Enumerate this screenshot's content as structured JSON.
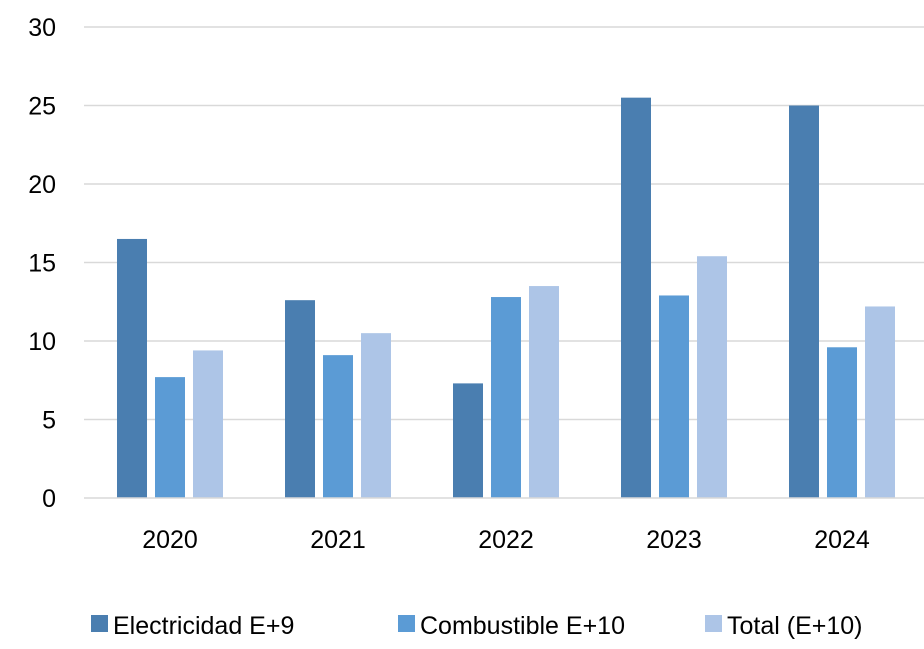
{
  "chart_data": {
    "type": "bar",
    "title": "",
    "xlabel": "",
    "ylabel": "",
    "categories": [
      "2020",
      "2021",
      "2022",
      "2023",
      "2024"
    ],
    "series": [
      {
        "name": "Electricidad E+9",
        "color": "#4a7eb0",
        "values": [
          16.5,
          12.6,
          7.3,
          25.5,
          25.0
        ]
      },
      {
        "name": "Combustible E+10",
        "color": "#5b9bd5",
        "values": [
          7.7,
          9.1,
          12.8,
          12.9,
          9.6
        ]
      },
      {
        "name": "Total (E+10)",
        "color": "#adc5e7",
        "values": [
          9.4,
          10.5,
          13.5,
          15.4,
          12.2
        ]
      }
    ],
    "ylim": [
      0,
      30
    ],
    "yticks": [
      0,
      5,
      10,
      15,
      20,
      25,
      30
    ],
    "grid": true,
    "legend_position": "bottom"
  }
}
